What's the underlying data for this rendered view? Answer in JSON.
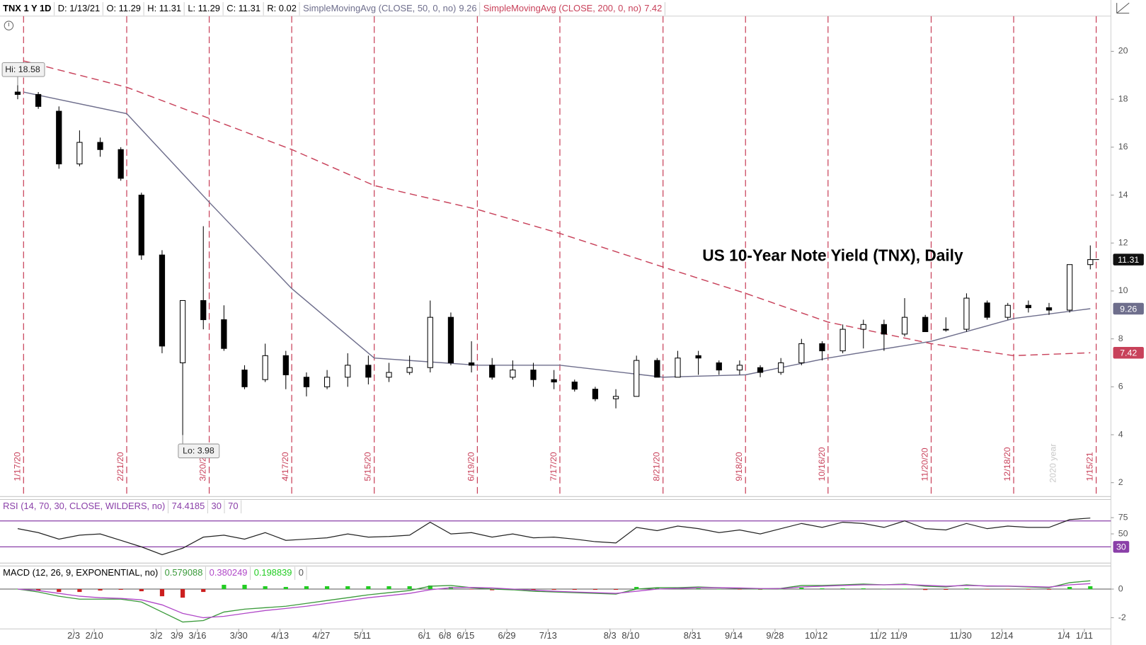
{
  "chart_data": [
    {
      "type": "candlestick",
      "title": "US 10-Year Note Yield (TNX), Daily",
      "header": [
        "TNX 1 Y 1D",
        "D: 1/13/21",
        "O: 11.29",
        "H: 11.31",
        "L: 11.29",
        "C: 11.31",
        "R: 0.02"
      ],
      "x": [
        "2020-01-13",
        "2020-01-20",
        "2020-01-27",
        "2020-02-03",
        "2020-02-10",
        "2020-02-17",
        "2020-02-24",
        "2020-03-02",
        "2020-03-09",
        "2020-03-16",
        "2020-03-23",
        "2020-03-30",
        "2020-04-06",
        "2020-04-13",
        "2020-04-20",
        "2020-04-27",
        "2020-05-04",
        "2020-05-11",
        "2020-05-18",
        "2020-05-25",
        "2020-06-01",
        "2020-06-08",
        "2020-06-15",
        "2020-06-22",
        "2020-06-29",
        "2020-07-06",
        "2020-07-13",
        "2020-07-20",
        "2020-07-27",
        "2020-08-03",
        "2020-08-10",
        "2020-08-17",
        "2020-08-24",
        "2020-08-31",
        "2020-09-07",
        "2020-09-14",
        "2020-09-21",
        "2020-09-28",
        "2020-10-05",
        "2020-10-12",
        "2020-10-19",
        "2020-10-26",
        "2020-11-02",
        "2020-11-09",
        "2020-11-16",
        "2020-11-23",
        "2020-11-30",
        "2020-12-07",
        "2020-12-14",
        "2020-12-21",
        "2020-12-28",
        "2021-01-04",
        "2021-01-11"
      ],
      "open": [
        18.3,
        18.2,
        17.5,
        15.3,
        16.2,
        15.9,
        14.0,
        11.5,
        7.0,
        9.6,
        8.8,
        6.7,
        6.3,
        7.3,
        6.4,
        6.0,
        6.4,
        6.9,
        6.4,
        6.6,
        6.8,
        8.9,
        7.0,
        6.9,
        6.4,
        6.7,
        6.3,
        6.2,
        5.9,
        5.5,
        5.6,
        7.1,
        6.4,
        7.3,
        7.0,
        6.7,
        6.8,
        6.6,
        7.0,
        7.8,
        7.5,
        8.4,
        8.6,
        8.2,
        8.9,
        8.4,
        8.4,
        9.5,
        8.9,
        9.4,
        9.3,
        9.2,
        11.1
      ],
      "high": [
        18.58,
        18.3,
        17.7,
        16.7,
        16.4,
        16.0,
        14.1,
        11.7,
        9.6,
        12.7,
        9.4,
        6.9,
        7.8,
        7.5,
        6.6,
        6.7,
        7.4,
        7.3,
        7.0,
        7.3,
        9.6,
        9.1,
        7.9,
        7.2,
        7.1,
        7.0,
        6.7,
        6.3,
        6.0,
        5.9,
        7.3,
        7.2,
        7.5,
        7.5,
        7.1,
        7.1,
        6.9,
        7.2,
        8.0,
        7.9,
        8.6,
        8.8,
        8.8,
        9.7,
        9.0,
        8.9,
        9.9,
        9.6,
        9.5,
        9.6,
        9.5,
        11.1,
        11.9
      ],
      "low": [
        18.0,
        17.6,
        15.1,
        15.2,
        15.6,
        14.6,
        11.3,
        7.4,
        3.98,
        8.4,
        7.5,
        5.9,
        6.2,
        5.9,
        5.6,
        5.9,
        6.0,
        6.1,
        6.2,
        6.5,
        6.6,
        6.9,
        6.6,
        6.3,
        6.3,
        6.0,
        5.9,
        5.8,
        5.4,
        5.1,
        5.6,
        6.4,
        6.4,
        6.5,
        6.5,
        6.5,
        6.4,
        6.5,
        6.9,
        7.1,
        7.4,
        7.6,
        7.5,
        8.1,
        8.3,
        8.3,
        8.3,
        8.8,
        8.8,
        9.1,
        9.0,
        9.1,
        10.9
      ],
      "close": [
        18.2,
        17.7,
        15.3,
        16.2,
        15.9,
        14.7,
        11.5,
        7.7,
        9.6,
        8.8,
        7.6,
        6.0,
        7.3,
        6.5,
        6.0,
        6.4,
        6.9,
        6.4,
        6.6,
        6.8,
        8.9,
        7.0,
        6.9,
        6.4,
        6.7,
        6.3,
        6.2,
        5.9,
        5.5,
        5.6,
        7.1,
        6.4,
        7.2,
        7.2,
        6.7,
        6.9,
        6.6,
        7.0,
        7.8,
        7.5,
        8.4,
        8.6,
        8.2,
        8.9,
        8.3,
        8.4,
        9.7,
        8.9,
        9.4,
        9.3,
        9.2,
        11.1,
        11.31
      ],
      "up_color": "#ffffff",
      "down_color": "#000000",
      "outline_color": "#000000",
      "series": [
        {
          "name": "SimpleMovingAvg (CLOSE, 50, 0, no)",
          "color": "#6e6e8c",
          "dashed": false,
          "x": [
            "2020-01-17",
            "2020-02-21",
            "2020-03-20",
            "2020-04-17",
            "2020-05-15",
            "2020-06-19",
            "2020-07-17",
            "2020-08-21",
            "2020-09-18",
            "2020-10-16",
            "2020-11-20",
            "2020-12-18",
            "2021-01-13"
          ],
          "values": [
            18.3,
            17.4,
            13.7,
            10.1,
            7.2,
            6.9,
            6.9,
            6.4,
            6.5,
            7.2,
            7.9,
            8.85,
            9.26
          ]
        },
        {
          "name": "SimpleMovingAvg (CLOSE, 200, 0, no)",
          "color": "#c8415a",
          "dashed": true,
          "x": [
            "2020-01-17",
            "2020-02-21",
            "2020-03-20",
            "2020-04-17",
            "2020-05-15",
            "2020-06-19",
            "2020-07-17",
            "2020-08-21",
            "2020-09-18",
            "2020-10-16",
            "2020-11-20",
            "2020-12-18",
            "2021-01-13"
          ],
          "values": [
            19.6,
            18.5,
            17.2,
            15.9,
            14.4,
            13.4,
            12.4,
            11.0,
            9.9,
            8.7,
            7.8,
            7.3,
            7.42
          ]
        }
      ],
      "vlines": [
        {
          "value": "2020-01-17",
          "label": "1/17/20"
        },
        {
          "value": "2020-02-21",
          "label": "2/21/20"
        },
        {
          "value": "2020-03-20",
          "label": "3/20/20"
        },
        {
          "value": "2020-04-17",
          "label": "4/17/20"
        },
        {
          "value": "2020-05-15",
          "label": "5/15/20"
        },
        {
          "value": "2020-06-19",
          "label": "6/19/20"
        },
        {
          "value": "2020-07-17",
          "label": "7/17/20"
        },
        {
          "value": "2020-08-21",
          "label": "8/21/20"
        },
        {
          "value": "2020-09-18",
          "label": "9/18/20"
        },
        {
          "value": "2020-10-16",
          "label": "10/16/20"
        },
        {
          "value": "2020-11-20",
          "label": "11/20/20"
        },
        {
          "value": "2020-12-18",
          "label": "12/18/20"
        },
        {
          "value": "2021-01-15",
          "label": "1/15/21"
        }
      ],
      "vline_color": "#c8415a",
      "annotations": [
        "Hi: 18.58",
        "Lo: 3.98",
        "2020 year"
      ],
      "xlim": [
        "2020-01-09",
        "2021-01-20"
      ],
      "ylim": [
        1.42,
        21.47
      ],
      "yticks": [
        2,
        4,
        6,
        8,
        10,
        12,
        14,
        16,
        18,
        20
      ]
    },
    {
      "type": "line",
      "name": "RSI (14, 70, 30, CLOSE, WILDERS, no)",
      "color": "#222222",
      "values": [
        58,
        52,
        42,
        48,
        50,
        40,
        30,
        18,
        28,
        45,
        48,
        42,
        52,
        40,
        42,
        44,
        50,
        45,
        46,
        48,
        68,
        50,
        52,
        45,
        50,
        44,
        45,
        42,
        38,
        36,
        60,
        55,
        62,
        58,
        52,
        56,
        50,
        58,
        66,
        60,
        68,
        66,
        60,
        70,
        58,
        56,
        66,
        58,
        62,
        60,
        60,
        72,
        74.4185
      ],
      "levels": [
        30,
        70
      ],
      "level_color": "#8a3fa8",
      "ylim": [
        5,
        103
      ],
      "yticks": [
        50,
        75
      ]
    },
    {
      "type": "macd",
      "name": "MACD (12, 26, 9, EXPONENTIAL, no)",
      "series": [
        {
          "color": "#3a9a3a",
          "values": [
            0,
            -0.2,
            -0.5,
            -0.7,
            -0.7,
            -0.7,
            -0.9,
            -1.6,
            -2.3,
            -2.2,
            -1.6,
            -1.4,
            -1.3,
            -1.2,
            -1.0,
            -0.8,
            -0.6,
            -0.4,
            -0.25,
            -0.1,
            0.2,
            0.25,
            0.1,
            0.0,
            -0.05,
            -0.15,
            -0.2,
            -0.25,
            -0.3,
            -0.35,
            0.0,
            0.1,
            0.1,
            0.15,
            0.1,
            0.05,
            0.0,
            0.05,
            0.25,
            0.25,
            0.3,
            0.35,
            0.3,
            0.35,
            0.2,
            0.15,
            0.3,
            0.2,
            0.2,
            0.15,
            0.1,
            0.45,
            0.579088
          ]
        },
        {
          "color": "#b048c8",
          "values": [
            0,
            -0.1,
            -0.3,
            -0.5,
            -0.6,
            -0.65,
            -0.75,
            -1.1,
            -1.7,
            -2.0,
            -1.9,
            -1.7,
            -1.5,
            -1.35,
            -1.2,
            -1.0,
            -0.8,
            -0.6,
            -0.45,
            -0.3,
            -0.05,
            0.1,
            0.12,
            0.08,
            0.0,
            -0.08,
            -0.15,
            -0.2,
            -0.25,
            -0.3,
            -0.15,
            0.0,
            0.05,
            0.1,
            0.1,
            0.08,
            0.04,
            0.04,
            0.15,
            0.2,
            0.25,
            0.3,
            0.3,
            0.32,
            0.26,
            0.2,
            0.25,
            0.22,
            0.21,
            0.18,
            0.14,
            0.3,
            0.380249
          ]
        }
      ],
      "histogram": [
        0,
        -0.1,
        -0.2,
        -0.2,
        -0.1,
        -0.05,
        -0.15,
        -0.5,
        -0.6,
        -0.2,
        0.3,
        0.3,
        0.2,
        0.15,
        0.2,
        0.2,
        0.2,
        0.2,
        0.2,
        0.2,
        0.25,
        0.15,
        -0.02,
        -0.08,
        -0.05,
        -0.07,
        -0.05,
        -0.05,
        -0.05,
        -0.05,
        0.15,
        0.1,
        0.05,
        0.05,
        0,
        -0.03,
        -0.04,
        0.01,
        0.1,
        0.05,
        0.05,
        0.05,
        0,
        0.03,
        -0.06,
        -0.05,
        0.05,
        -0.02,
        -0.01,
        -0.03,
        -0.04,
        0.15,
        0.198839
      ],
      "up_color": "#22cc22",
      "down_color": "#cc1f1f",
      "zero_level": 0,
      "ylim": [
        -2.78,
        1.61
      ],
      "yticks": [
        0,
        -2
      ],
      "xlim": [
        "2020-01-09",
        "2021-01-20"
      ],
      "xticks": [
        {
          "value": "2020-02-03",
          "label": "2/3"
        },
        {
          "value": "2020-02-10",
          "label": "2/10"
        },
        {
          "value": "2020-03-02",
          "label": "3/2"
        },
        {
          "value": "2020-03-09",
          "label": "3/9"
        },
        {
          "value": "2020-03-16",
          "label": "3/16"
        },
        {
          "value": "2020-03-30",
          "label": "3/30"
        },
        {
          "value": "2020-04-13",
          "label": "4/13"
        },
        {
          "value": "2020-04-27",
          "label": "4/27"
        },
        {
          "value": "2020-05-11",
          "label": "5/11"
        },
        {
          "value": "2020-06-01",
          "label": "6/1"
        },
        {
          "value": "2020-06-08",
          "label": "6/8"
        },
        {
          "value": "2020-06-15",
          "label": "6/15"
        },
        {
          "value": "2020-06-29",
          "label": "6/29"
        },
        {
          "value": "2020-07-13",
          "label": "7/13"
        },
        {
          "value": "2020-08-03",
          "label": "8/3"
        },
        {
          "value": "2020-08-10",
          "label": "8/10"
        },
        {
          "value": "2020-08-31",
          "label": "8/31"
        },
        {
          "value": "2020-09-14",
          "label": "9/14"
        },
        {
          "value": "2020-09-28",
          "label": "9/28"
        },
        {
          "value": "2020-10-12",
          "label": "10/12"
        },
        {
          "value": "2020-11-02",
          "label": "11/2"
        },
        {
          "value": "2020-11-09",
          "label": "11/9"
        },
        {
          "value": "2020-11-30",
          "label": "11/30"
        },
        {
          "value": "2020-12-14",
          "label": "12/14"
        },
        {
          "value": "2021-01-04",
          "label": "1/4"
        },
        {
          "value": "2021-01-11",
          "label": "1/11"
        }
      ]
    }
  ]
}
